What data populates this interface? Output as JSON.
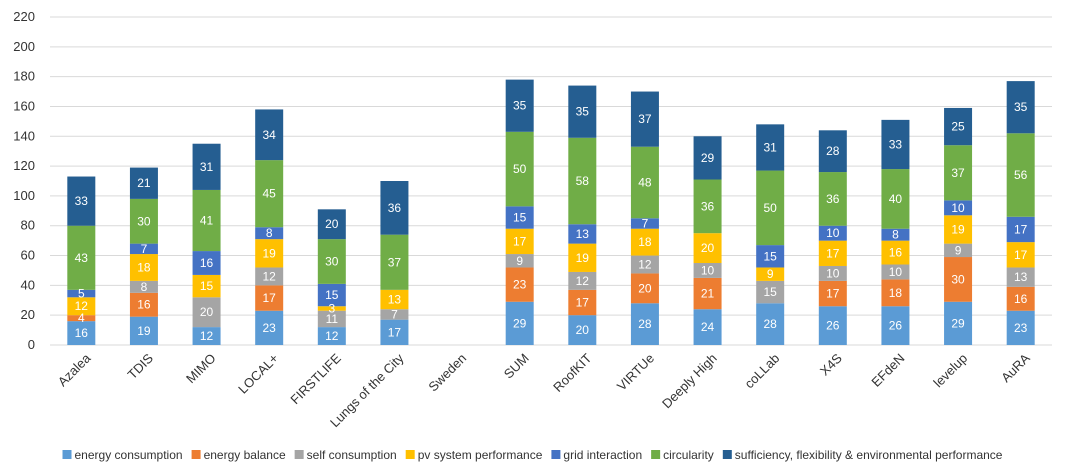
{
  "chart_data": {
    "type": "bar",
    "stacked": true,
    "title": "",
    "xlabel": "",
    "ylabel": "",
    "ylim": [
      0,
      220
    ],
    "yticks": [
      0,
      20,
      40,
      60,
      80,
      100,
      120,
      140,
      160,
      180,
      200,
      220
    ],
    "grid": true,
    "legend_position": "bottom",
    "categories": [
      "Azalea",
      "TDIS",
      "MIMO",
      "LOCAL+",
      "FIRSTLIFE",
      "Lungs of the City",
      "Sweden",
      "SUM",
      "RoofKIT",
      "VIRTUe",
      "Deeply High",
      "coLLab",
      "X4S",
      "EFdeN",
      "levelup",
      "AuRA"
    ],
    "series": [
      {
        "name": "energy consumption",
        "color": "#5b9bd5",
        "values": [
          16,
          19,
          12,
          23,
          12,
          17,
          0,
          29,
          20,
          28,
          24,
          28,
          26,
          26,
          29,
          23
        ]
      },
      {
        "name": "energy balance",
        "color": "#ed7d31",
        "values": [
          4,
          16,
          0,
          17,
          0,
          0,
          0,
          23,
          17,
          20,
          21,
          0,
          17,
          18,
          30,
          16
        ]
      },
      {
        "name": "self consumption",
        "color": "#a5a5a5",
        "values": [
          0,
          8,
          20,
          12,
          11,
          7,
          0,
          9,
          12,
          12,
          10,
          15,
          10,
          10,
          9,
          13
        ]
      },
      {
        "name": "pv system performance",
        "color": "#ffc000",
        "values": [
          12,
          18,
          15,
          19,
          3,
          13,
          0,
          17,
          19,
          18,
          20,
          9,
          17,
          16,
          19,
          17
        ]
      },
      {
        "name": "grid interaction",
        "color": "#4472c4",
        "values": [
          5,
          7,
          16,
          8,
          15,
          0,
          0,
          15,
          13,
          7,
          0,
          15,
          10,
          8,
          10,
          17
        ]
      },
      {
        "name": "circularity",
        "color": "#70ad47",
        "values": [
          43,
          30,
          41,
          45,
          30,
          37,
          0,
          50,
          58,
          48,
          36,
          50,
          36,
          40,
          37,
          56
        ]
      },
      {
        "name": "sufficiency, flexibility & environmental performance",
        "color": "#255e91",
        "values": [
          33,
          21,
          31,
          34,
          20,
          36,
          0,
          35,
          35,
          37,
          29,
          31,
          28,
          33,
          25,
          35
        ]
      }
    ]
  }
}
